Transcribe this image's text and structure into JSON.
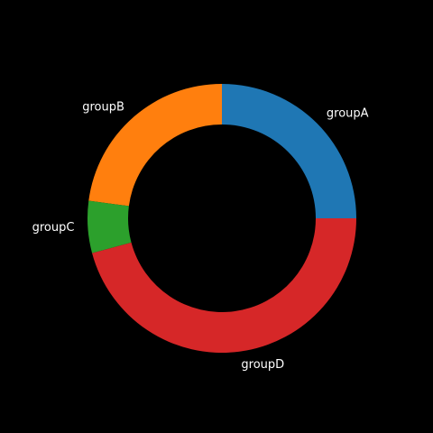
{
  "chart_data": {
    "type": "pie",
    "donut": true,
    "title": "",
    "legend": "none",
    "start_angle_deg": 0,
    "direction": "counterclockwise",
    "slices": [
      {
        "label": "groupA",
        "value": 12,
        "color": "#1f77b4"
      },
      {
        "label": "groupB",
        "value": 11,
        "color": "#ff7f0e"
      },
      {
        "label": "groupC",
        "value": 3,
        "color": "#2ca02c"
      },
      {
        "label": "groupD",
        "value": 22,
        "color": "#d62728"
      }
    ]
  },
  "colors": {
    "background": "#000000",
    "label_text": "#ffffff"
  }
}
